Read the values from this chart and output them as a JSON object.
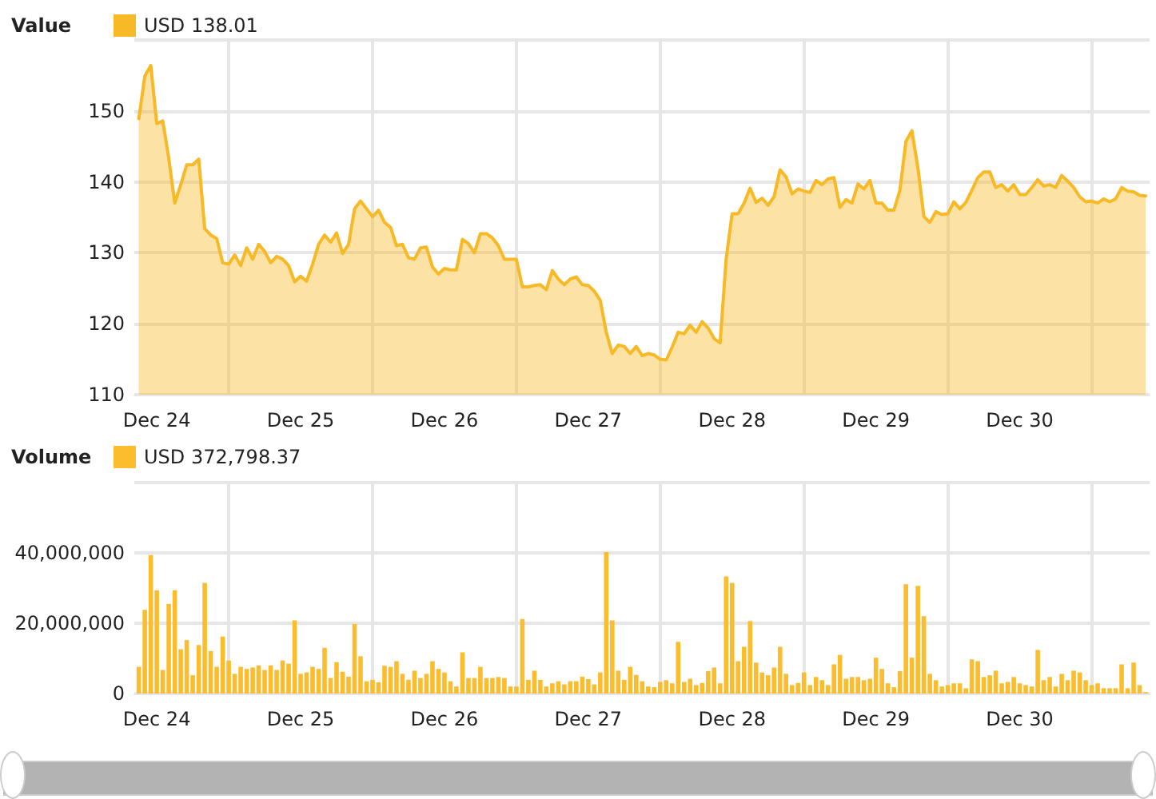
{
  "chart_data": [
    {
      "type": "area",
      "legend_title": "Value",
      "legend": "top left",
      "grid": true,
      "x": [
        "--12-23T21:00",
        "--12-23T22:00",
        "--12-23T23:00",
        "--12-24T00:00",
        "--12-24T01:00",
        "--12-24T02:00",
        "--12-24T03:00",
        "--12-24T04:00",
        "--12-24T05:00",
        "--12-24T06:00",
        "--12-24T07:00",
        "--12-24T08:00",
        "--12-24T09:00",
        "--12-24T10:00",
        "--12-24T11:00",
        "--12-24T12:00",
        "--12-24T13:00",
        "--12-24T14:00",
        "--12-24T15:00",
        "--12-24T16:00",
        "--12-24T17:00",
        "--12-24T18:00",
        "--12-24T19:00",
        "--12-24T20:00",
        "--12-24T21:00",
        "--12-24T22:00",
        "--12-24T23:00",
        "--12-25T00:00",
        "--12-25T01:00",
        "--12-25T02:00",
        "--12-25T03:00",
        "--12-25T04:00",
        "--12-25T05:00",
        "--12-25T06:00",
        "--12-25T07:00",
        "--12-25T08:00",
        "--12-25T09:00",
        "--12-25T10:00",
        "--12-25T11:00",
        "--12-25T12:00",
        "--12-25T13:00",
        "--12-25T14:00",
        "--12-25T15:00",
        "--12-25T16:00",
        "--12-25T17:00",
        "--12-25T18:00",
        "--12-25T19:00",
        "--12-25T20:00",
        "--12-25T21:00",
        "--12-25T22:00",
        "--12-25T23:00",
        "--12-26T00:00",
        "--12-26T01:00",
        "--12-26T02:00",
        "--12-26T03:00",
        "--12-26T04:00",
        "--12-26T05:00",
        "--12-26T06:00",
        "--12-26T07:00",
        "--12-26T08:00",
        "--12-26T09:00",
        "--12-26T10:00",
        "--12-26T11:00",
        "--12-26T12:00",
        "--12-26T13:00",
        "--12-26T14:00",
        "--12-26T15:00",
        "--12-26T16:00",
        "--12-26T17:00",
        "--12-26T18:00",
        "--12-26T19:00",
        "--12-26T20:00",
        "--12-26T21:00",
        "--12-26T22:00",
        "--12-26T23:00",
        "--12-27T00:00",
        "--12-27T01:00",
        "--12-27T02:00",
        "--12-27T03:00",
        "--12-27T04:00",
        "--12-27T05:00",
        "--12-27T06:00",
        "--12-27T07:00",
        "--12-27T08:00",
        "--12-27T09:00",
        "--12-27T10:00",
        "--12-27T11:00",
        "--12-27T12:00",
        "--12-27T13:00",
        "--12-27T14:00",
        "--12-27T15:00",
        "--12-27T16:00",
        "--12-27T17:00",
        "--12-27T18:00",
        "--12-27T19:00",
        "--12-27T20:00",
        "--12-27T21:00",
        "--12-27T22:00",
        "--12-27T23:00",
        "--12-28T00:00",
        "--12-28T01:00",
        "--12-28T02:00",
        "--12-28T03:00",
        "--12-28T04:00",
        "--12-28T05:00",
        "--12-28T06:00",
        "--12-28T07:00",
        "--12-28T08:00",
        "--12-28T09:00",
        "--12-28T10:00",
        "--12-28T11:00",
        "--12-28T12:00",
        "--12-28T13:00",
        "--12-28T14:00",
        "--12-28T15:00",
        "--12-28T16:00",
        "--12-28T17:00",
        "--12-28T18:00",
        "--12-28T19:00",
        "--12-28T20:00",
        "--12-28T21:00",
        "--12-28T22:00",
        "--12-28T23:00",
        "--12-29T00:00",
        "--12-29T01:00",
        "--12-29T02:00",
        "--12-29T03:00",
        "--12-29T04:00",
        "--12-29T05:00",
        "--12-29T06:00",
        "--12-29T07:00",
        "--12-29T08:00",
        "--12-29T09:00",
        "--12-29T10:00",
        "--12-29T11:00",
        "--12-29T12:00",
        "--12-29T13:00",
        "--12-29T14:00",
        "--12-29T15:00",
        "--12-29T16:00",
        "--12-29T17:00",
        "--12-29T18:00",
        "--12-29T19:00",
        "--12-29T20:00",
        "--12-29T21:00",
        "--12-29T22:00",
        "--12-29T23:00",
        "--12-30T00:00",
        "--12-30T01:00",
        "--12-30T02:00",
        "--12-30T03:00",
        "--12-30T04:00",
        "--12-30T05:00",
        "--12-30T06:00",
        "--12-30T07:00",
        "--12-30T08:00",
        "--12-30T09:00",
        "--12-30T10:00",
        "--12-30T11:00",
        "--12-30T12:00",
        "--12-30T13:00",
        "--12-30T14:00",
        "--12-30T15:00",
        "--12-30T16:00",
        "--12-30T17:00",
        "--12-30T18:00",
        "--12-30T19:00",
        "--12-30T20:00",
        "--12-30T21:00"
      ],
      "xlim": [
        "--12-23T20:15",
        "--12-30T21:40"
      ],
      "xticks": [
        {
          "value": "--12-24",
          "label": "Dec 24"
        },
        {
          "value": "--12-24T12:00",
          "label": null
        },
        {
          "value": "--12-25",
          "label": "Dec 25"
        },
        {
          "value": "--12-25T12:00",
          "label": null
        },
        {
          "value": "--12-26",
          "label": "Dec 26"
        },
        {
          "value": "--12-26T12:00",
          "label": null
        },
        {
          "value": "--12-27",
          "label": "Dec 27"
        },
        {
          "value": "--12-27T12:00",
          "label": null
        },
        {
          "value": "--12-28",
          "label": "Dec 28"
        },
        {
          "value": "--12-28T12:00",
          "label": null
        },
        {
          "value": "--12-29",
          "label": "Dec 29"
        },
        {
          "value": "--12-29T12:00",
          "label": null
        },
        {
          "value": "--12-30",
          "label": "Dec 30"
        },
        {
          "value": "--12-30T12:00",
          "label": null
        }
      ],
      "ylim": [
        110,
        160
      ],
      "yticks": [
        110,
        120,
        130,
        140,
        150,
        {
          "value": 160,
          "label": null
        }
      ],
      "series": [
        {
          "name": "USD 138.01",
          "color": "#f8b927",
          "values": [
            148.9,
            154.9,
            156.4,
            148.2,
            148.6,
            143.3,
            137,
            139.6,
            142.4,
            142.4,
            143.2,
            133.4,
            132.5,
            132,
            128.6,
            128.4,
            129.7,
            128.2,
            130.7,
            129.1,
            131.2,
            130.2,
            128.6,
            129.5,
            129.1,
            128.2,
            125.9,
            126.7,
            126,
            128.4,
            131.2,
            132.5,
            131.5,
            132.8,
            129.9,
            131.2,
            136.2,
            137.3,
            136.2,
            135.1,
            136,
            134.3,
            133.6,
            131,
            131.2,
            129.3,
            129.1,
            130.7,
            130.8,
            128,
            127,
            127.8,
            127.6,
            127.6,
            131.9,
            131.3,
            130,
            132.7,
            132.7,
            132.1,
            131,
            129.1,
            129.1,
            129.1,
            125.2,
            125.2,
            125.4,
            125.5,
            124.8,
            127.5,
            126.3,
            125.5,
            126.3,
            126.6,
            125.5,
            125.4,
            124.6,
            123.3,
            118.8,
            115.8,
            117,
            116.8,
            115.8,
            116.8,
            115.5,
            115.8,
            115.6,
            115,
            114.9,
            116.7,
            118.8,
            118.6,
            119.8,
            118.8,
            120.3,
            119.4,
            117.9,
            117.3,
            129.1,
            135.5,
            135.5,
            137,
            139.1,
            137.1,
            137.7,
            136.7,
            137.9,
            141.7,
            140.7,
            138.3,
            139,
            138.7,
            138.5,
            140.2,
            139.6,
            140.4,
            140.6,
            136.4,
            137.5,
            137,
            139.7,
            139,
            140.2,
            137,
            137,
            136,
            136,
            138.8,
            145.7,
            147.2,
            142,
            135.1,
            134.3,
            135.8,
            135.4,
            135.5,
            137.2,
            136.2,
            137.1,
            138.8,
            140.6,
            141.4,
            141.4,
            139.2,
            139.6,
            138.7,
            139.6,
            138.2,
            138.2,
            139.2,
            140.3,
            139.4,
            139.6,
            139.2,
            140.9,
            140.1,
            139.2,
            137.9,
            137.2,
            137.3,
            137,
            137.6,
            137.2,
            137.6,
            139.2,
            138.7,
            138.6,
            138.1,
            138.01
          ]
        }
      ]
    },
    {
      "type": "bar",
      "legend_title": "Volume",
      "legend": "top left",
      "grid": true,
      "x": [
        "--12-23T21:00",
        "--12-23T22:00",
        "--12-23T23:00",
        "--12-24T00:00",
        "--12-24T01:00",
        "--12-24T02:00",
        "--12-24T03:00",
        "--12-24T04:00",
        "--12-24T05:00",
        "--12-24T06:00",
        "--12-24T07:00",
        "--12-24T08:00",
        "--12-24T09:00",
        "--12-24T10:00",
        "--12-24T11:00",
        "--12-24T12:00",
        "--12-24T13:00",
        "--12-24T14:00",
        "--12-24T15:00",
        "--12-24T16:00",
        "--12-24T17:00",
        "--12-24T18:00",
        "--12-24T19:00",
        "--12-24T20:00",
        "--12-24T21:00",
        "--12-24T22:00",
        "--12-24T23:00",
        "--12-25T00:00",
        "--12-25T01:00",
        "--12-25T02:00",
        "--12-25T03:00",
        "--12-25T04:00",
        "--12-25T05:00",
        "--12-25T06:00",
        "--12-25T07:00",
        "--12-25T08:00",
        "--12-25T09:00",
        "--12-25T10:00",
        "--12-25T11:00",
        "--12-25T12:00",
        "--12-25T13:00",
        "--12-25T14:00",
        "--12-25T15:00",
        "--12-25T16:00",
        "--12-25T17:00",
        "--12-25T18:00",
        "--12-25T19:00",
        "--12-25T20:00",
        "--12-25T21:00",
        "--12-25T22:00",
        "--12-25T23:00",
        "--12-26T00:00",
        "--12-26T01:00",
        "--12-26T02:00",
        "--12-26T03:00",
        "--12-26T04:00",
        "--12-26T05:00",
        "--12-26T06:00",
        "--12-26T07:00",
        "--12-26T08:00",
        "--12-26T09:00",
        "--12-26T10:00",
        "--12-26T11:00",
        "--12-26T12:00",
        "--12-26T13:00",
        "--12-26T14:00",
        "--12-26T15:00",
        "--12-26T16:00",
        "--12-26T17:00",
        "--12-26T18:00",
        "--12-26T19:00",
        "--12-26T20:00",
        "--12-26T21:00",
        "--12-26T22:00",
        "--12-26T23:00",
        "--12-27T00:00",
        "--12-27T01:00",
        "--12-27T02:00",
        "--12-27T03:00",
        "--12-27T04:00",
        "--12-27T05:00",
        "--12-27T06:00",
        "--12-27T07:00",
        "--12-27T08:00",
        "--12-27T09:00",
        "--12-27T10:00",
        "--12-27T11:00",
        "--12-27T12:00",
        "--12-27T13:00",
        "--12-27T14:00",
        "--12-27T15:00",
        "--12-27T16:00",
        "--12-27T17:00",
        "--12-27T18:00",
        "--12-27T19:00",
        "--12-27T20:00",
        "--12-27T21:00",
        "--12-27T22:00",
        "--12-27T23:00",
        "--12-28T00:00",
        "--12-28T01:00",
        "--12-28T02:00",
        "--12-28T03:00",
        "--12-28T04:00",
        "--12-28T05:00",
        "--12-28T06:00",
        "--12-28T07:00",
        "--12-28T08:00",
        "--12-28T09:00",
        "--12-28T10:00",
        "--12-28T11:00",
        "--12-28T12:00",
        "--12-28T13:00",
        "--12-28T14:00",
        "--12-28T15:00",
        "--12-28T16:00",
        "--12-28T17:00",
        "--12-28T18:00",
        "--12-28T19:00",
        "--12-28T20:00",
        "--12-28T21:00",
        "--12-28T22:00",
        "--12-28T23:00",
        "--12-29T00:00",
        "--12-29T01:00",
        "--12-29T02:00",
        "--12-29T03:00",
        "--12-29T04:00",
        "--12-29T05:00",
        "--12-29T06:00",
        "--12-29T07:00",
        "--12-29T08:00",
        "--12-29T09:00",
        "--12-29T10:00",
        "--12-29T11:00",
        "--12-29T12:00",
        "--12-29T13:00",
        "--12-29T14:00",
        "--12-29T15:00",
        "--12-29T16:00",
        "--12-29T17:00",
        "--12-29T18:00",
        "--12-29T19:00",
        "--12-29T20:00",
        "--12-29T21:00",
        "--12-29T22:00",
        "--12-29T23:00",
        "--12-30T00:00",
        "--12-30T01:00",
        "--12-30T02:00",
        "--12-30T03:00",
        "--12-30T04:00",
        "--12-30T05:00",
        "--12-30T06:00",
        "--12-30T07:00",
        "--12-30T08:00",
        "--12-30T09:00",
        "--12-30T10:00",
        "--12-30T11:00",
        "--12-30T12:00",
        "--12-30T13:00",
        "--12-30T14:00",
        "--12-30T15:00",
        "--12-30T16:00",
        "--12-30T17:00",
        "--12-30T18:00",
        "--12-30T19:00",
        "--12-30T20:00",
        "--12-30T21:00"
      ],
      "xlim": [
        "--12-23T20:15",
        "--12-30T21:40"
      ],
      "xticks": [
        {
          "value": "--12-24",
          "label": "Dec 24"
        },
        {
          "value": "--12-24T12:00",
          "label": null
        },
        {
          "value": "--12-25",
          "label": "Dec 25"
        },
        {
          "value": "--12-25T12:00",
          "label": null
        },
        {
          "value": "--12-26",
          "label": "Dec 26"
        },
        {
          "value": "--12-26T12:00",
          "label": null
        },
        {
          "value": "--12-27",
          "label": "Dec 27"
        },
        {
          "value": "--12-27T12:00",
          "label": null
        },
        {
          "value": "--12-28",
          "label": "Dec 28"
        },
        {
          "value": "--12-28T12:00",
          "label": null
        },
        {
          "value": "--12-29",
          "label": "Dec 29"
        },
        {
          "value": "--12-29T12:00",
          "label": null
        },
        {
          "value": "--12-30",
          "label": "Dec 30"
        },
        {
          "value": "--12-30T12:00",
          "label": null
        }
      ],
      "ylim": [
        0,
        60000000
      ],
      "yticks": [
        0,
        {
          "value": 20000000,
          "label": "20,000,000"
        },
        {
          "value": 40000000,
          "label": "40,000,000"
        },
        {
          "value": 60000000,
          "label": null
        }
      ],
      "series": [
        {
          "name": "USD 372,798.37",
          "color": "#fbbd2e",
          "values": [
            7600000,
            23800000,
            39400000,
            29400000,
            6700000,
            25500000,
            29400000,
            12600000,
            15200000,
            5200000,
            13800000,
            31500000,
            12100000,
            7600000,
            16200000,
            9400000,
            5600000,
            7600000,
            7000000,
            7400000,
            8000000,
            6700000,
            8000000,
            6700000,
            9400000,
            8500000,
            20800000,
            5600000,
            6000000,
            7600000,
            7000000,
            13000000,
            4400000,
            8900000,
            6200000,
            4800000,
            19800000,
            10600000,
            3500000,
            3900000,
            3200000,
            7900000,
            7600000,
            9200000,
            5600000,
            3900000,
            6500000,
            4400000,
            5600000,
            9200000,
            7000000,
            6000000,
            3500000,
            2000000,
            11700000,
            4400000,
            4400000,
            7600000,
            4400000,
            4400000,
            4700000,
            4400000,
            2000000,
            2000000,
            21200000,
            3900000,
            6500000,
            3900000,
            2000000,
            2900000,
            3500000,
            2600000,
            3500000,
            3500000,
            4800000,
            4100000,
            2600000,
            6000000,
            40200000,
            20800000,
            6500000,
            3900000,
            7600000,
            5300000,
            3500000,
            2000000,
            1800000,
            3300000,
            3800000,
            2900000,
            14700000,
            3300000,
            4200000,
            2400000,
            3000000,
            6400000,
            7400000,
            2900000,
            33300000,
            31500000,
            9200000,
            13300000,
            20600000,
            8800000,
            6000000,
            5200000,
            7400000,
            13300000,
            5600000,
            2400000,
            3000000,
            6000000,
            2400000,
            4700000,
            3800000,
            2400000,
            8300000,
            11000000,
            4200000,
            4700000,
            4700000,
            3800000,
            4200000,
            10200000,
            7000000,
            2900000,
            1800000,
            6400000,
            31100000,
            10200000,
            30600000,
            22000000,
            5600000,
            3800000,
            2000000,
            2400000,
            2900000,
            2900000,
            1500000,
            9700000,
            9200000,
            4700000,
            5200000,
            6500000,
            2900000,
            3300000,
            4700000,
            2900000,
            2400000,
            2000000,
            12400000,
            3800000,
            4700000,
            2000000,
            5600000,
            3800000,
            6500000,
            6000000,
            3800000,
            2400000,
            2900000,
            1500000,
            1500000,
            1500000,
            8300000,
            1500000,
            8800000,
            2400000,
            372798.37
          ]
        }
      ]
    }
  ]
}
